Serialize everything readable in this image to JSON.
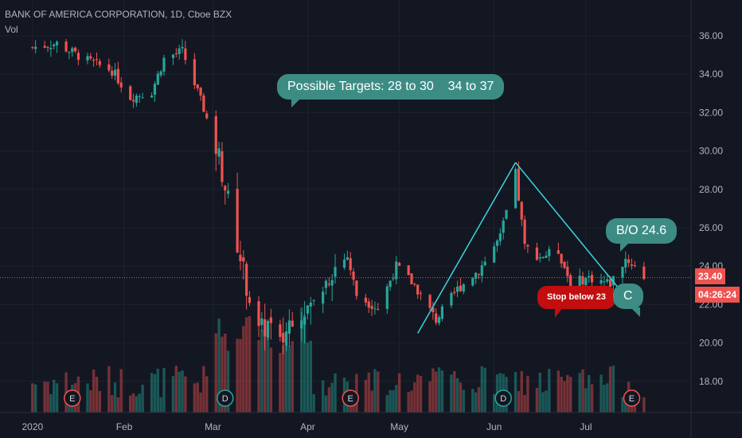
{
  "header": {
    "symbol_line": "BANK OF AMERICA CORPORATION, 1D, Cboe BZX",
    "volume_label": "Vol"
  },
  "annotations": {
    "targets": "Possible Targets: 28 to 30    34 to 37",
    "breakout": "B/O 24.6",
    "stop": "Stop below 23",
    "wave": "C"
  },
  "price_tag": {
    "last": "23.40",
    "countdown": "04:26:24"
  },
  "colors": {
    "up": "#26a69a",
    "down": "#ef5350",
    "background": "#131722",
    "grid": "#1e222d",
    "callout": "#3d8c84",
    "stop": "#c20e0e",
    "trendline": "#3bd6e0"
  },
  "chart_data": {
    "type": "candlestick",
    "title": "BANK OF AMERICA CORPORATION, 1D, Cboe BZX",
    "y_ticks": [
      "36.00",
      "34.00",
      "32.00",
      "30.00",
      "28.00",
      "26.00",
      "24.00",
      "22.00",
      "20.00",
      "18.00"
    ],
    "x_ticks": [
      "2020",
      "Feb",
      "Mar",
      "Apr",
      "May",
      "Jun",
      "Jul"
    ],
    "ylim": [
      16.5,
      37.5
    ],
    "last_price": 23.4,
    "events": [
      {
        "label": "E",
        "date": "2020-01-15"
      },
      {
        "label": "D",
        "date": "2020-03-05"
      },
      {
        "label": "E",
        "date": "2020-04-15"
      },
      {
        "label": "D",
        "date": "2020-06-04"
      },
      {
        "label": "E",
        "date": "2020-07-16"
      }
    ],
    "trendlines": [
      {
        "from": {
          "date": "2020-05-07",
          "price": 20.5
        },
        "to": {
          "date": "2020-06-08",
          "price": 29.4
        }
      },
      {
        "from": {
          "date": "2020-06-08",
          "price": 29.4
        },
        "to": {
          "date": "2020-07-13",
          "price": 22.6
        }
      }
    ],
    "close_path": [
      [
        "2020-01-02",
        35.4
      ],
      [
        "2020-01-10",
        35.6
      ],
      [
        "2020-01-20",
        34.7
      ],
      [
        "2020-01-28",
        34.2
      ],
      [
        "2020-02-03",
        32.8
      ],
      [
        "2020-02-10",
        33.1
      ],
      [
        "2020-02-14",
        34.8
      ],
      [
        "2020-02-20",
        35.2
      ],
      [
        "2020-02-27",
        32.2
      ],
      [
        "2020-03-03",
        29.7
      ],
      [
        "2020-03-06",
        27.4
      ],
      [
        "2020-03-12",
        23.0
      ],
      [
        "2020-03-16",
        20.5
      ],
      [
        "2020-03-19",
        21.0
      ],
      [
        "2020-03-23",
        19.8
      ],
      [
        "2020-03-27",
        21.5
      ],
      [
        "2020-04-03",
        22.0
      ],
      [
        "2020-04-09",
        23.8
      ],
      [
        "2020-04-14",
        24.5
      ],
      [
        "2020-04-17",
        22.5
      ],
      [
        "2020-04-24",
        21.8
      ],
      [
        "2020-04-30",
        24.0
      ],
      [
        "2020-05-06",
        23.0
      ],
      [
        "2020-05-13",
        21.2
      ],
      [
        "2020-05-20",
        22.8
      ],
      [
        "2020-05-27",
        23.8
      ],
      [
        "2020-06-03",
        25.5
      ],
      [
        "2020-06-08",
        28.8
      ],
      [
        "2020-06-11",
        25.0
      ],
      [
        "2020-06-16",
        24.5
      ],
      [
        "2020-06-22",
        24.8
      ],
      [
        "2020-06-26",
        23.1
      ],
      [
        "2020-07-02",
        23.4
      ],
      [
        "2020-07-09",
        23.1
      ],
      [
        "2020-07-14",
        24.4
      ],
      [
        "2020-07-17",
        24.0
      ],
      [
        "2020-07-20",
        23.4
      ]
    ]
  }
}
